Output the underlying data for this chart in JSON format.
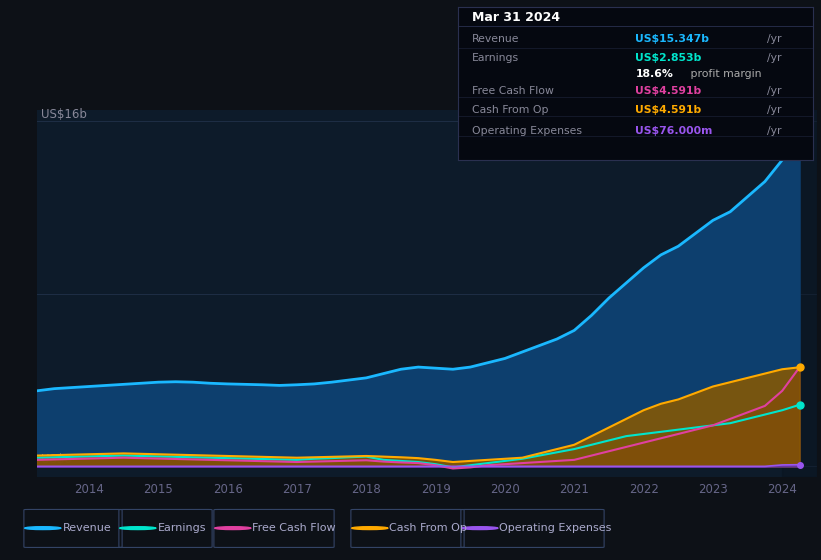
{
  "bg_color": "#0d1117",
  "plot_bg_color": "#0d1b2a",
  "grid_color": "#1e3050",
  "years": [
    2013.25,
    2013.5,
    2013.75,
    2014.0,
    2014.25,
    2014.5,
    2014.75,
    2015.0,
    2015.25,
    2015.5,
    2015.75,
    2016.0,
    2016.25,
    2016.5,
    2016.75,
    2017.0,
    2017.25,
    2017.5,
    2017.75,
    2018.0,
    2018.25,
    2018.5,
    2018.75,
    2019.0,
    2019.25,
    2019.5,
    2019.75,
    2020.0,
    2020.25,
    2020.5,
    2020.75,
    2021.0,
    2021.25,
    2021.5,
    2021.75,
    2022.0,
    2022.25,
    2022.5,
    2022.75,
    2023.0,
    2023.25,
    2023.5,
    2023.75,
    2024.0,
    2024.25
  ],
  "revenue": [
    3.5,
    3.6,
    3.65,
    3.7,
    3.75,
    3.8,
    3.85,
    3.9,
    3.92,
    3.9,
    3.85,
    3.82,
    3.8,
    3.78,
    3.75,
    3.78,
    3.82,
    3.9,
    4.0,
    4.1,
    4.3,
    4.5,
    4.6,
    4.55,
    4.5,
    4.6,
    4.8,
    5.0,
    5.3,
    5.6,
    5.9,
    6.3,
    7.0,
    7.8,
    8.5,
    9.2,
    9.8,
    10.2,
    10.8,
    11.4,
    11.8,
    12.5,
    13.2,
    14.2,
    15.347
  ],
  "earnings": [
    0.4,
    0.42,
    0.44,
    0.46,
    0.48,
    0.5,
    0.48,
    0.46,
    0.44,
    0.42,
    0.4,
    0.38,
    0.36,
    0.34,
    0.32,
    0.3,
    0.35,
    0.38,
    0.42,
    0.45,
    0.3,
    0.25,
    0.2,
    0.1,
    -0.05,
    0.05,
    0.15,
    0.25,
    0.35,
    0.5,
    0.65,
    0.8,
    1.0,
    1.2,
    1.4,
    1.5,
    1.6,
    1.7,
    1.8,
    1.9,
    2.0,
    2.2,
    2.4,
    2.6,
    2.853
  ],
  "free_cash_flow": [
    0.3,
    0.32,
    0.34,
    0.36,
    0.38,
    0.4,
    0.38,
    0.36,
    0.34,
    0.32,
    0.3,
    0.28,
    0.26,
    0.24,
    0.22,
    0.2,
    0.22,
    0.24,
    0.26,
    0.28,
    0.22,
    0.18,
    0.15,
    0.05,
    -0.1,
    -0.05,
    0.05,
    0.1,
    0.15,
    0.2,
    0.25,
    0.3,
    0.5,
    0.7,
    0.9,
    1.1,
    1.3,
    1.5,
    1.7,
    1.9,
    2.2,
    2.5,
    2.8,
    3.5,
    4.591
  ],
  "cash_from_op": [
    0.5,
    0.52,
    0.54,
    0.56,
    0.58,
    0.6,
    0.58,
    0.56,
    0.54,
    0.52,
    0.5,
    0.48,
    0.46,
    0.44,
    0.42,
    0.4,
    0.42,
    0.44,
    0.46,
    0.48,
    0.45,
    0.42,
    0.38,
    0.3,
    0.2,
    0.25,
    0.3,
    0.35,
    0.4,
    0.6,
    0.8,
    1.0,
    1.4,
    1.8,
    2.2,
    2.6,
    2.9,
    3.1,
    3.4,
    3.7,
    3.9,
    4.1,
    4.3,
    4.5,
    4.591
  ],
  "op_expenses": [
    0.0,
    0.0,
    0.0,
    0.0,
    0.0,
    0.0,
    0.0,
    0.0,
    0.0,
    0.0,
    0.0,
    0.0,
    0.0,
    0.0,
    0.0,
    0.0,
    0.0,
    0.0,
    0.0,
    0.0,
    0.0,
    0.0,
    0.0,
    0.0,
    0.0,
    0.0,
    0.0,
    0.0,
    0.0,
    0.0,
    0.0,
    0.0,
    0.0,
    0.0,
    0.0,
    0.0,
    0.0,
    0.0,
    0.0,
    0.0,
    0.0,
    0.0,
    0.0,
    0.065,
    0.076
  ],
  "revenue_color": "#1ab8ff",
  "earnings_color": "#00e5cc",
  "fcf_color": "#e040a0",
  "cashop_color": "#ffaa00",
  "opex_color": "#9955ee",
  "xlim_left": 2013.25,
  "xlim_right": 2024.5,
  "ylim_top": 16.5,
  "ylim_bottom": -0.5,
  "xticks": [
    2014,
    2015,
    2016,
    2017,
    2018,
    2019,
    2020,
    2021,
    2022,
    2023,
    2024
  ],
  "legend_items": [
    "Revenue",
    "Earnings",
    "Free Cash Flow",
    "Cash From Op",
    "Operating Expenses"
  ],
  "legend_colors": [
    "#1ab8ff",
    "#00e5cc",
    "#e040a0",
    "#ffaa00",
    "#9955ee"
  ],
  "info_rows": [
    {
      "label": "Revenue",
      "value": "US$15.347b",
      "extra": "/yr",
      "value_color": "#1ab8ff",
      "extra2": null,
      "extra2_color": null
    },
    {
      "label": "Earnings",
      "value": "US$2.853b",
      "extra": "/yr",
      "value_color": "#00e5cc",
      "extra2": "18.6% profit margin",
      "extra2_color": "#ffffff"
    },
    {
      "label": "Free Cash Flow",
      "value": "US$4.591b",
      "extra": "/yr",
      "value_color": "#e040a0",
      "extra2": null,
      "extra2_color": null
    },
    {
      "label": "Cash From Op",
      "value": "US$4.591b",
      "extra": "/yr",
      "value_color": "#ffaa00",
      "extra2": null,
      "extra2_color": null
    },
    {
      "label": "Operating Expenses",
      "value": "US$76.000m",
      "extra": "/yr",
      "value_color": "#9955ee",
      "extra2": null,
      "extra2_color": null
    }
  ]
}
